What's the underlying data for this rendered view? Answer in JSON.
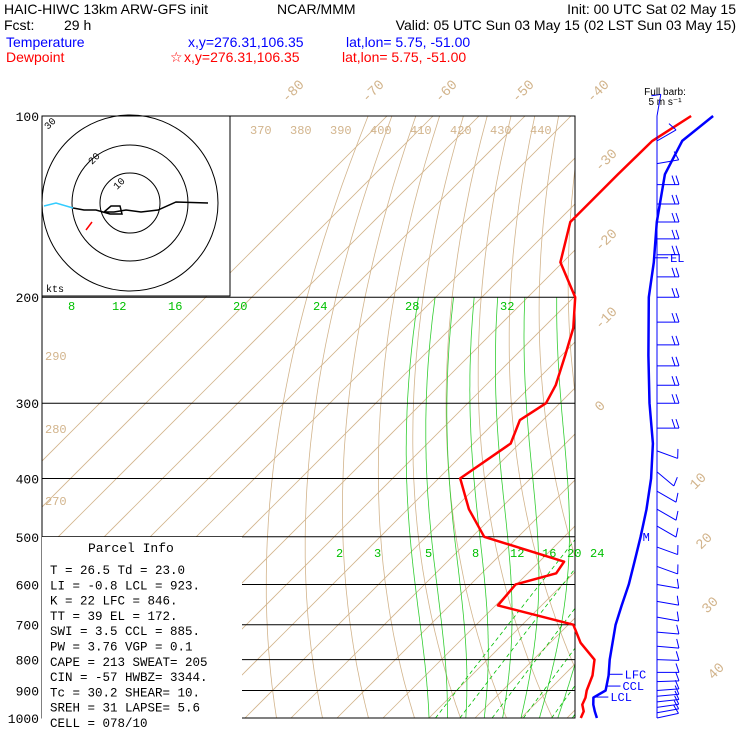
{
  "header": {
    "title": "HAIC-HIWC 13km ARW-GFS init",
    "source": "NCAR/MMM",
    "init": "Init: 00 UTC Sat 02 May 15",
    "fcst": "Fcst:",
    "fcst_hours": "29 h",
    "valid": "Valid: 05 UTC Sun 03 May 15 (02 LST Sun 03 May 15)"
  },
  "legend": {
    "temperature": {
      "label": "Temperature",
      "xy": "x,y=276.31,106.35",
      "latlon": "lat,lon=  5.75, -51.00",
      "color": "#0000ff"
    },
    "dewpoint": {
      "label": "Dewpoint",
      "marker": "☆",
      "xy": "x,y=276.31,106.35",
      "latlon": "lat,lon=  5.75, -51.00",
      "color": "#ff0000"
    }
  },
  "barb_legend": {
    "line1": "Full barb:",
    "line2": "5 m s⁻¹"
  },
  "hodograph": {
    "unit": "kts",
    "ring_labels": [
      "30",
      "20",
      "10"
    ]
  },
  "parcel_info": {
    "title": "Parcel Info",
    "rows": [
      "T  =   26.5 Td =  23.0",
      "LI =   -0.8 LCL =  923.",
      "K  =     22 LFC =  846.",
      "TT =     39 EL  =  172.",
      "SWI =   3.5 CCL =  885.",
      "PW =   3.76 VGP =   0.1",
      "CAPE =  213 SWEAT=  205",
      "CIN =   -57 HWBZ= 3344.",
      "Tc =   30.2 SHEAR=  10.",
      "SREH =   31 LAPSE=   5.6",
      "CELL = 078/10"
    ]
  },
  "chart_data": {
    "type": "skew-t log-p sounding",
    "y_axis": {
      "label": "Pressure (hPa)",
      "scale": "log",
      "ticks": [
        100,
        200,
        300,
        400,
        500,
        600,
        700,
        800,
        900,
        1000
      ],
      "range": [
        1000,
        100
      ]
    },
    "isotherm_labels_top": [
      "-80",
      "-70",
      "-60",
      "-50",
      "-40"
    ],
    "isotherm_labels_right": [
      "-30",
      "-20",
      "-10",
      "0",
      "10",
      "20",
      "30",
      "40"
    ],
    "theta_labels": [
      "370",
      "380",
      "390",
      "400",
      "410",
      "420",
      "430",
      "440"
    ],
    "theta_labels_left": [
      "290",
      "280",
      "270"
    ],
    "mixing_ratio_labels_upper": [
      "8",
      "12",
      "16",
      "20",
      "24",
      "28",
      "32"
    ],
    "mixing_ratio_labels_lower": [
      "2",
      "3",
      "5",
      "8",
      "12",
      "16",
      "20",
      "24"
    ],
    "series": [
      {
        "name": "Temperature",
        "color": "#0000ff",
        "points": [
          [
            1000,
            26.5
          ],
          [
            975,
            24.6
          ],
          [
            950,
            22.8
          ],
          [
            925,
            21.3
          ],
          [
            900,
            22.4
          ],
          [
            850,
            19.8
          ],
          [
            800,
            16.6
          ],
          [
            700,
            10.3
          ],
          [
            650,
            7.4
          ],
          [
            600,
            4.4
          ],
          [
            550,
            0.7
          ],
          [
            500,
            -3.4
          ],
          [
            450,
            -8.1
          ],
          [
            400,
            -13.8
          ],
          [
            350,
            -21.0
          ],
          [
            300,
            -30.5
          ],
          [
            250,
            -41.1
          ],
          [
            200,
            -53.7
          ],
          [
            175,
            -60.2
          ],
          [
            150,
            -68.3
          ],
          [
            125,
            -76.9
          ],
          [
            110,
            -80.4
          ],
          [
            100,
            -79.1
          ]
        ]
      },
      {
        "name": "Dewpoint",
        "color": "#ff0000",
        "points": [
          [
            1000,
            23.0
          ],
          [
            975,
            22.2
          ],
          [
            950,
            20.4
          ],
          [
            925,
            19.6
          ],
          [
            900,
            18.3
          ],
          [
            850,
            16.3
          ],
          [
            800,
            13.3
          ],
          [
            750,
            6.6
          ],
          [
            700,
            1.1
          ],
          [
            650,
            -19.5
          ],
          [
            600,
            -20.2
          ],
          [
            575,
            -13.8
          ],
          [
            550,
            -14.6
          ],
          [
            500,
            -37.4
          ],
          [
            450,
            -46.7
          ],
          [
            400,
            -55.3
          ],
          [
            350,
            -51.9
          ],
          [
            320,
            -55.0
          ],
          [
            300,
            -53.0
          ],
          [
            280,
            -54.8
          ],
          [
            250,
            -59.2
          ],
          [
            225,
            -63.4
          ],
          [
            200,
            -69.7
          ],
          [
            175,
            -80.5
          ],
          [
            150,
            -87.1
          ],
          [
            125,
            -87.1
          ],
          [
            110,
            -86.9
          ],
          [
            100,
            -83.9
          ]
        ]
      }
    ],
    "annotations": [
      {
        "text": "EL",
        "pressure": 172,
        "color": "#0000ff"
      },
      {
        "text": "LFC",
        "pressure": 846,
        "color": "#0000ff"
      },
      {
        "text": "CCL",
        "pressure": 885,
        "color": "#0000ff"
      },
      {
        "text": "LCL",
        "pressure": 923,
        "color": "#0000ff"
      },
      {
        "text": "M",
        "pressure": 500,
        "color": "#0000ff"
      }
    ],
    "wind_barbs": {
      "units": "m/s",
      "color": "#0000ff",
      "levels": [
        {
          "p": 1000,
          "dir": 78,
          "spd": 5
        },
        {
          "p": 980,
          "dir": 80,
          "spd": 5
        },
        {
          "p": 960,
          "dir": 82,
          "spd": 5
        },
        {
          "p": 940,
          "dir": 84,
          "spd": 6
        },
        {
          "p": 920,
          "dir": 85,
          "spd": 6
        },
        {
          "p": 900,
          "dir": 86,
          "spd": 6
        },
        {
          "p": 870,
          "dir": 88,
          "spd": 5
        },
        {
          "p": 840,
          "dir": 90,
          "spd": 5
        },
        {
          "p": 800,
          "dir": 92,
          "spd": 5
        },
        {
          "p": 760,
          "dir": 95,
          "spd": 5
        },
        {
          "p": 720,
          "dir": 95,
          "spd": 5
        },
        {
          "p": 680,
          "dir": 100,
          "spd": 5
        },
        {
          "p": 640,
          "dir": 100,
          "spd": 5
        },
        {
          "p": 600,
          "dir": 100,
          "spd": 5
        },
        {
          "p": 560,
          "dir": 110,
          "spd": 5
        },
        {
          "p": 520,
          "dir": 110,
          "spd": 5
        },
        {
          "p": 480,
          "dir": 120,
          "spd": 5
        },
        {
          "p": 450,
          "dir": 120,
          "spd": 5
        },
        {
          "p": 420,
          "dir": 120,
          "spd": 5
        },
        {
          "p": 390,
          "dir": 130,
          "spd": 5
        },
        {
          "p": 360,
          "dir": 110,
          "spd": 5
        },
        {
          "p": 330,
          "dir": 90,
          "spd": 10
        },
        {
          "p": 300,
          "dir": 90,
          "spd": 10
        },
        {
          "p": 280,
          "dir": 90,
          "spd": 10
        },
        {
          "p": 260,
          "dir": 90,
          "spd": 10
        },
        {
          "p": 240,
          "dir": 90,
          "spd": 10
        },
        {
          "p": 220,
          "dir": 90,
          "spd": 10
        },
        {
          "p": 200,
          "dir": 90,
          "spd": 10
        },
        {
          "p": 185,
          "dir": 90,
          "spd": 10
        },
        {
          "p": 170,
          "dir": 90,
          "spd": 10
        },
        {
          "p": 160,
          "dir": 90,
          "spd": 10
        },
        {
          "p": 150,
          "dir": 90,
          "spd": 10
        },
        {
          "p": 140,
          "dir": 90,
          "spd": 10
        },
        {
          "p": 130,
          "dir": 90,
          "spd": 10
        },
        {
          "p": 120,
          "dir": 80,
          "spd": 5
        },
        {
          "p": 110,
          "dir": 60,
          "spd": 5
        },
        {
          "p": 100,
          "dir": 10,
          "spd": 5
        }
      ]
    }
  },
  "colors": {
    "isotherm": "#d2b48c",
    "isobar": "#000000",
    "mixing_ratio": "#00c000",
    "moist_adiabat": "#32cd32",
    "dry_adiabat": "#d2b48c",
    "hodo_trace": "#000000",
    "hodo_sfc": "#33ccff"
  }
}
